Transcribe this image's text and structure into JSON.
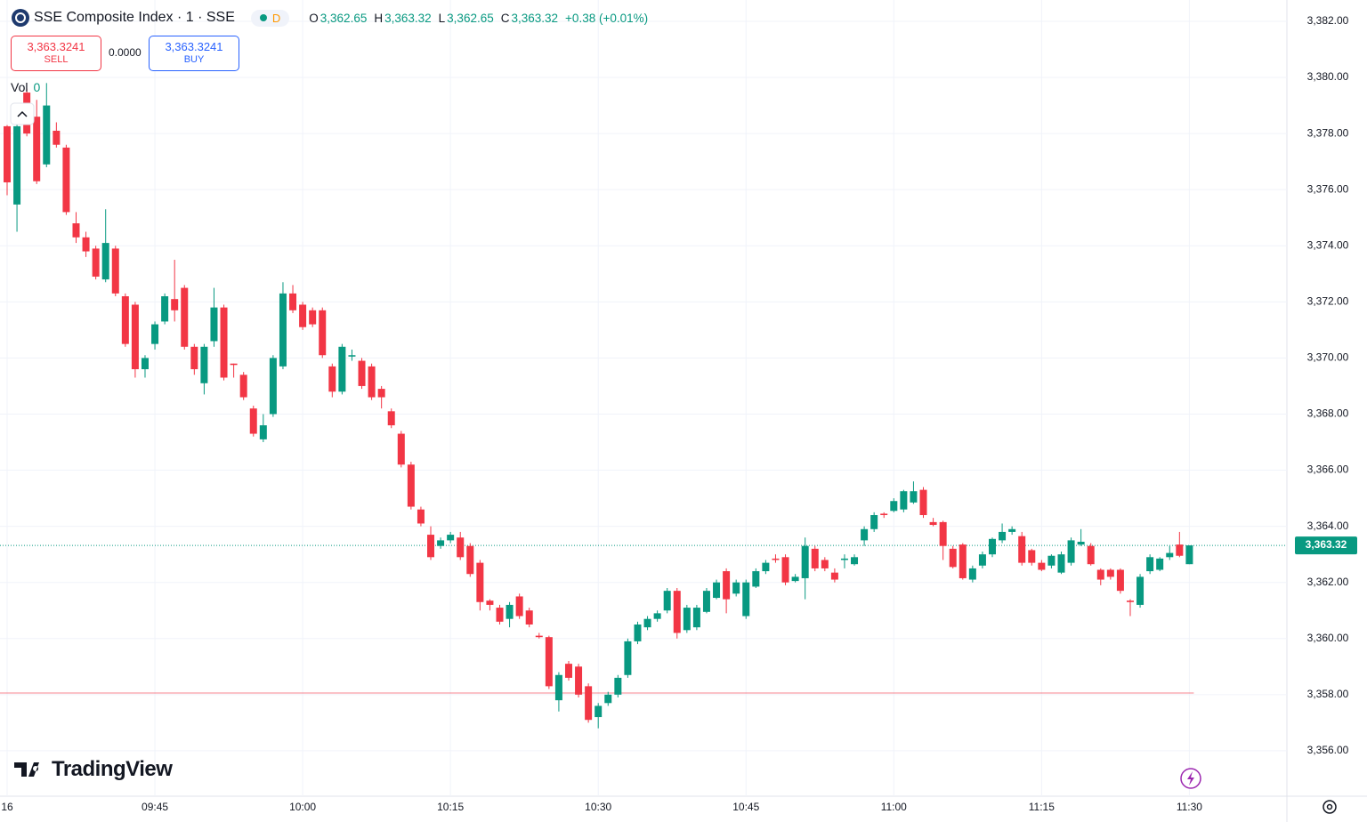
{
  "header": {
    "title": "SSE Composite Index · 1 · SSE",
    "badge": "D",
    "ohlc": [
      {
        "key": "O",
        "value": "3,362.65"
      },
      {
        "key": "H",
        "value": "3,363.32"
      },
      {
        "key": "L",
        "value": "3,362.65"
      },
      {
        "key": "C",
        "value": "3,363.32"
      }
    ],
    "change": "+0.38 (+0.01%)",
    "sell": {
      "price": "3,363.3241",
      "label": "SELL"
    },
    "spread": "0.0000",
    "buy": {
      "price": "3,363.3241",
      "label": "BUY"
    },
    "volume": {
      "label": "Vol",
      "value": "0"
    },
    "brand": "TradingView"
  },
  "chart_data": {
    "type": "candlestick",
    "categories": [
      "16",
      null,
      null,
      null,
      null,
      null,
      null,
      null,
      null,
      null,
      null,
      null,
      null,
      null,
      null,
      "09:45",
      null,
      null,
      null,
      null,
      null,
      null,
      null,
      null,
      null,
      null,
      null,
      null,
      null,
      null,
      "10:00",
      null,
      null,
      null,
      null,
      null,
      null,
      null,
      null,
      null,
      null,
      null,
      null,
      null,
      null,
      "10:15",
      null,
      null,
      null,
      null,
      null,
      null,
      null,
      null,
      null,
      null,
      null,
      null,
      null,
      null,
      "10:30",
      null,
      null,
      null,
      null,
      null,
      null,
      null,
      null,
      null,
      null,
      null,
      null,
      null,
      null,
      "10:45",
      null,
      null,
      null,
      null,
      null,
      null,
      null,
      null,
      null,
      null,
      null,
      null,
      null,
      null,
      "11:00",
      null,
      null,
      null,
      null,
      null,
      null,
      null,
      null,
      null,
      null,
      null,
      null,
      null,
      null,
      "11:15",
      null,
      null,
      null,
      null,
      null,
      null,
      null,
      null,
      null,
      null,
      null,
      null,
      null,
      null,
      "11:30"
    ],
    "open": [
      3378.26,
      3375.47,
      3379.46,
      3378.6,
      3376.9,
      3378.1,
      3377.5,
      3374.8,
      3374.3,
      3373.9,
      3372.8,
      3373.9,
      3372.2,
      3371.9,
      3369.6,
      3370.5,
      3371.3,
      3372.1,
      3372.5,
      3370.4,
      3369.1,
      3370.6,
      3371.8,
      3369.8,
      3369.4,
      3368.2,
      3367.1,
      3368.0,
      3369.7,
      3372.3,
      3371.9,
      3371.7,
      3371.7,
      3369.7,
      3368.8,
      3370.05,
      3369.9,
      3369.7,
      3368.9,
      3368.1,
      3367.3,
      3366.2,
      3364.6,
      3363.7,
      3363.3,
      3363.5,
      3363.6,
      3363.3,
      3362.7,
      3361.35,
      3361.1,
      3360.7,
      3361.5,
      3361.0,
      3360.1,
      3360.05,
      3357.8,
      3359.1,
      3359.0,
      3358.3,
      3357.2,
      3357.7,
      3358.0,
      3358.7,
      3359.9,
      3360.4,
      3360.7,
      3361.0,
      3361.7,
      3360.3,
      3360.4,
      3360.95,
      3361.45,
      3362.4,
      3361.6,
      3360.8,
      3361.85,
      3362.4,
      3362.85,
      3362.9,
      3362.05,
      3362.15,
      3363.2,
      3362.8,
      3362.35,
      3362.8,
      3362.65,
      3363.5,
      3363.9,
      3364.45,
      3364.55,
      3364.6,
      3364.85,
      3365.3,
      3364.15,
      3364.15,
      3363.2,
      3363.35,
      3362.1,
      3362.6,
      3363.0,
      3363.5,
      3363.8,
      3363.65,
      3363.15,
      3362.7,
      3362.6,
      3362.35,
      3362.7,
      3363.35,
      3363.3,
      3362.45,
      3362.45,
      3362.45,
      3361.35,
      3361.2,
      3362.4,
      3362.45,
      3362.9,
      3363.35,
      3362.65
    ],
    "high": [
      3378.3,
      3379.0,
      3379.6,
      3379.2,
      3379.8,
      3378.4,
      3377.6,
      3375.2,
      3374.5,
      3374.0,
      3375.3,
      3374.0,
      3372.3,
      3372.0,
      3370.1,
      3371.3,
      3372.3,
      3373.5,
      3372.6,
      3370.5,
      3370.5,
      3372.5,
      3371.9,
      3369.8,
      3369.5,
      3368.3,
      3368.0,
      3370.1,
      3372.7,
      3372.6,
      3372.0,
      3371.8,
      3371.8,
      3369.8,
      3370.5,
      3370.3,
      3370.0,
      3369.8,
      3369.0,
      3368.2,
      3367.4,
      3366.3,
      3364.7,
      3364.0,
      3363.6,
      3363.8,
      3363.8,
      3363.4,
      3362.8,
      3361.4,
      3361.2,
      3361.3,
      3361.6,
      3361.1,
      3360.2,
      3360.1,
      3358.8,
      3359.2,
      3359.1,
      3358.4,
      3357.7,
      3358.1,
      3358.7,
      3360.0,
      3360.6,
      3360.8,
      3361.0,
      3361.8,
      3361.8,
      3361.2,
      3361.2,
      3361.8,
      3362.1,
      3362.5,
      3362.1,
      3362.1,
      3362.5,
      3362.8,
      3363.0,
      3363.0,
      3362.3,
      3363.6,
      3363.3,
      3362.9,
      3362.5,
      3363.0,
      3363.0,
      3364.0,
      3364.5,
      3364.5,
      3365.0,
      3365.3,
      3365.6,
      3365.4,
      3364.3,
      3364.2,
      3363.3,
      3363.4,
      3362.6,
      3363.1,
      3363.6,
      3364.1,
      3364.0,
      3363.8,
      3363.2,
      3362.8,
      3363.0,
      3363.1,
      3363.6,
      3363.9,
      3363.4,
      3362.5,
      3362.5,
      3362.5,
      3361.4,
      3362.3,
      3363.0,
      3362.9,
      3363.3,
      3363.8,
      3363.32
    ],
    "low": [
      3375.8,
      3374.5,
      3377.9,
      3376.2,
      3376.8,
      3377.5,
      3375.1,
      3374.1,
      3373.6,
      3372.8,
      3372.7,
      3372.2,
      3370.4,
      3369.3,
      3369.3,
      3370.3,
      3371.2,
      3371.3,
      3370.3,
      3369.4,
      3368.7,
      3370.4,
      3369.2,
      3369.3,
      3368.5,
      3367.2,
      3367.0,
      3367.9,
      3369.6,
      3371.6,
      3371.0,
      3371.1,
      3370.0,
      3368.6,
      3368.7,
      3369.9,
      3368.9,
      3368.5,
      3368.2,
      3367.5,
      3366.1,
      3364.6,
      3364.0,
      3362.8,
      3363.2,
      3363.4,
      3362.8,
      3362.2,
      3361.0,
      3361.0,
      3360.5,
      3360.4,
      3360.7,
      3360.4,
      3360.0,
      3358.2,
      3357.4,
      3358.5,
      3357.9,
      3357.0,
      3356.8,
      3357.6,
      3357.9,
      3358.6,
      3359.8,
      3360.3,
      3360.6,
      3360.9,
      3360.0,
      3360.2,
      3360.3,
      3360.9,
      3361.4,
      3360.9,
      3361.5,
      3360.7,
      3361.8,
      3362.3,
      3362.7,
      3361.9,
      3362.0,
      3361.4,
      3362.4,
      3362.4,
      3362.0,
      3362.5,
      3362.6,
      3363.3,
      3363.8,
      3364.3,
      3364.5,
      3364.5,
      3364.8,
      3364.3,
      3364.0,
      3362.8,
      3362.5,
      3362.1,
      3362.0,
      3362.5,
      3362.9,
      3363.4,
      3363.7,
      3362.6,
      3362.6,
      3362.4,
      3362.5,
      3362.3,
      3362.6,
      3363.3,
      3362.6,
      3361.9,
      3362.1,
      3361.6,
      3360.8,
      3361.1,
      3362.3,
      3362.4,
      3362.8,
      3362.9,
      3362.65
    ],
    "close": [
      3376.26,
      3378.26,
      3378.0,
      3376.3,
      3379.0,
      3377.6,
      3375.2,
      3374.3,
      3373.8,
      3372.9,
      3374.1,
      3372.3,
      3370.5,
      3369.6,
      3370.0,
      3371.2,
      3372.2,
      3371.7,
      3370.4,
      3369.6,
      3370.4,
      3371.8,
      3369.3,
      3369.75,
      3368.6,
      3367.3,
      3367.6,
      3370.0,
      3372.3,
      3371.7,
      3371.1,
      3371.2,
      3370.1,
      3368.8,
      3370.4,
      3370.1,
      3369.0,
      3368.6,
      3368.6,
      3367.6,
      3366.2,
      3364.7,
      3364.1,
      3362.9,
      3363.5,
      3363.7,
      3362.9,
      3362.3,
      3361.3,
      3361.2,
      3360.6,
      3361.2,
      3360.8,
      3360.5,
      3360.05,
      3358.3,
      3358.7,
      3358.6,
      3358.0,
      3357.1,
      3357.6,
      3358.0,
      3358.6,
      3359.9,
      3360.5,
      3360.7,
      3360.9,
      3361.7,
      3360.2,
      3361.1,
      3361.1,
      3361.7,
      3362.0,
      3361.4,
      3362.0,
      3362.0,
      3362.4,
      3362.7,
      3362.8,
      3362.0,
      3362.2,
      3363.3,
      3362.5,
      3362.5,
      3362.1,
      3362.85,
      3362.9,
      3363.9,
      3364.4,
      3364.4,
      3364.9,
      3365.25,
      3365.25,
      3364.4,
      3364.05,
      3363.3,
      3362.55,
      3362.15,
      3362.5,
      3363.0,
      3363.55,
      3363.8,
      3363.9,
      3362.7,
      3362.7,
      3362.45,
      3362.95,
      3363.0,
      3363.5,
      3363.45,
      3362.65,
      3362.1,
      3362.2,
      3361.7,
      3361.3,
      3362.2,
      3362.9,
      3362.85,
      3363.05,
      3362.95,
      3363.32
    ],
    "up_color": "#089981",
    "down_color": "#f23645",
    "ylim": [
      3354.38,
      3382.76
    ],
    "yticks": [
      {
        "value": 3356,
        "label": "3,356.00"
      },
      {
        "value": 3358,
        "label": "3,358.00"
      },
      {
        "value": 3360,
        "label": "3,360.00"
      },
      {
        "value": 3362,
        "label": "3,362.00"
      },
      {
        "value": 3364,
        "label": "3,364.00"
      },
      {
        "value": 3366,
        "label": "3,366.00"
      },
      {
        "value": 3368,
        "label": "3,368.00"
      },
      {
        "value": 3370,
        "label": "3,370.00"
      },
      {
        "value": 3372,
        "label": "3,372.00"
      },
      {
        "value": 3374,
        "label": "3,374.00"
      },
      {
        "value": 3376,
        "label": "3,376.00"
      },
      {
        "value": 3378,
        "label": "3,378.00"
      },
      {
        "value": 3380,
        "label": "3,380.00"
      },
      {
        "value": 3382,
        "label": "3,382.00"
      }
    ],
    "grid": true,
    "last_price": {
      "value": 3363.32,
      "label": "3,363.32"
    },
    "reference_line": {
      "value": 3358.06,
      "color": "#f23645"
    }
  }
}
